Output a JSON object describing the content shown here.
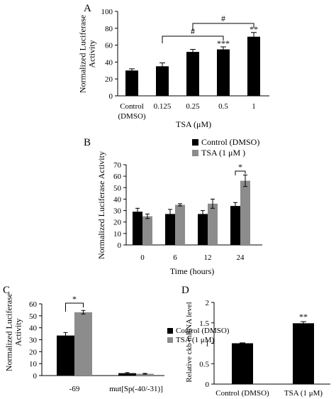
{
  "colors": {
    "control": "#000000",
    "tsa": "#8c8c8c",
    "axis": "#000000"
  },
  "chart_data": [
    {
      "panel": "A",
      "type": "bar",
      "ylabel": [
        "Normalized Luciferase",
        "Activity"
      ],
      "xlabel": "TSA (μM)",
      "ylim": [
        0,
        100
      ],
      "yticks": [
        0,
        20,
        40,
        60,
        80,
        100
      ],
      "categories": [
        [
          "Control",
          "(DMSO)"
        ],
        [
          "0.125"
        ],
        [
          "0.25"
        ],
        [
          "0.5"
        ],
        [
          "1"
        ]
      ],
      "values": [
        30,
        35,
        52,
        55,
        70
      ],
      "errors": [
        2,
        4,
        3,
        3,
        5
      ],
      "significance": [
        "",
        "",
        "",
        "***",
        "**"
      ],
      "brackets": [
        {
          "from": 1,
          "to": 3,
          "label": "#"
        },
        {
          "from": 2,
          "to": 4,
          "label": "#"
        }
      ]
    },
    {
      "panel": "B",
      "type": "bar",
      "ylabel": [
        "Normalized Luciferase Activity"
      ],
      "xlabel": "Time (hours)",
      "ylim": [
        0,
        70
      ],
      "yticks": [
        0,
        10,
        20,
        30,
        40,
        50,
        60,
        70
      ],
      "categories": [
        "0",
        "6",
        "12",
        "24"
      ],
      "series": [
        {
          "name": "Control (DMSO)",
          "values": [
            29,
            27,
            27,
            34
          ],
          "errors": [
            3,
            4,
            3,
            3
          ]
        },
        {
          "name": "TSA (1 μM )",
          "values": [
            25,
            35,
            36,
            56
          ],
          "errors": [
            2,
            1,
            4,
            5
          ]
        }
      ],
      "legend": "top-right",
      "brackets": [
        {
          "category": 3,
          "label": "*"
        }
      ]
    },
    {
      "panel": "C",
      "type": "bar",
      "ylabel": [
        "Normalized Luciferase",
        "Activity"
      ],
      "ylim": [
        0,
        60
      ],
      "yticks": [
        0,
        10,
        20,
        30,
        40,
        50,
        60
      ],
      "categories": [
        "-69",
        "mut[Sp(-40/-31)]"
      ],
      "series": [
        {
          "name": "Control (DMSO)",
          "values": [
            33.5,
            2
          ],
          "errors": [
            2.5,
            0.5
          ]
        },
        {
          "name": "TSA (1 μM)",
          "values": [
            53,
            1.5
          ],
          "errors": [
            1.5,
            0.3
          ]
        }
      ],
      "legend": "right",
      "brackets": [
        {
          "category": 0,
          "label": "*"
        }
      ]
    },
    {
      "panel": "D",
      "type": "bar",
      "ylabel": [
        "Relative ckb mRNA level"
      ],
      "ylim": [
        0,
        2
      ],
      "yticks": [
        "0",
        "0.5",
        "1",
        "1.5",
        "2"
      ],
      "categories": [
        "Control (DMSO)",
        "TSA (1 μM)"
      ],
      "values": [
        1.0,
        1.49
      ],
      "errors": [
        0.01,
        0.04
      ],
      "significance": [
        "",
        "**"
      ]
    }
  ]
}
